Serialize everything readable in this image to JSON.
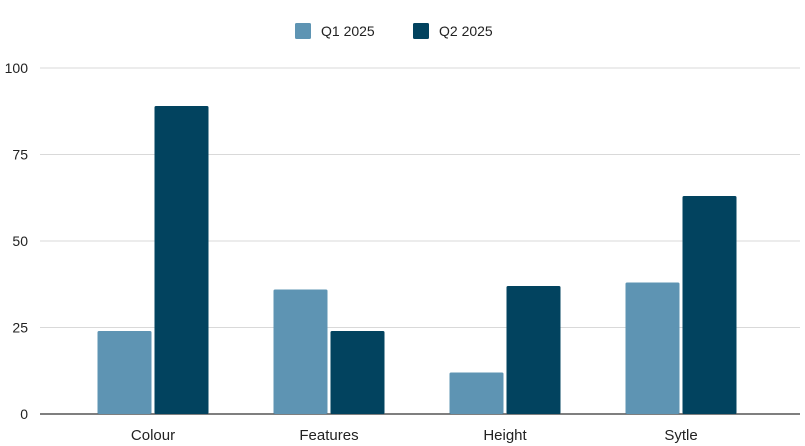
{
  "chart_data": {
    "type": "bar",
    "title": "",
    "xlabel": "",
    "ylabel": "",
    "categories": [
      "Colour",
      "Features",
      "Height",
      "Sytle"
    ],
    "series": [
      {
        "name": "Q1 2025",
        "values": [
          24,
          36,
          12,
          38
        ],
        "color": "#5e94b3"
      },
      {
        "name": "Q2 2025",
        "values": [
          89,
          24,
          37,
          63
        ],
        "color": "#02435f"
      }
    ],
    "ylim": [
      0,
      100
    ],
    "yticks": [
      0,
      25,
      50,
      75,
      100
    ],
    "grid": true,
    "legend_position": "top-center",
    "colors": {
      "gridline": "#d9d9d9",
      "baseline": "#333333",
      "text": "#222222"
    }
  }
}
